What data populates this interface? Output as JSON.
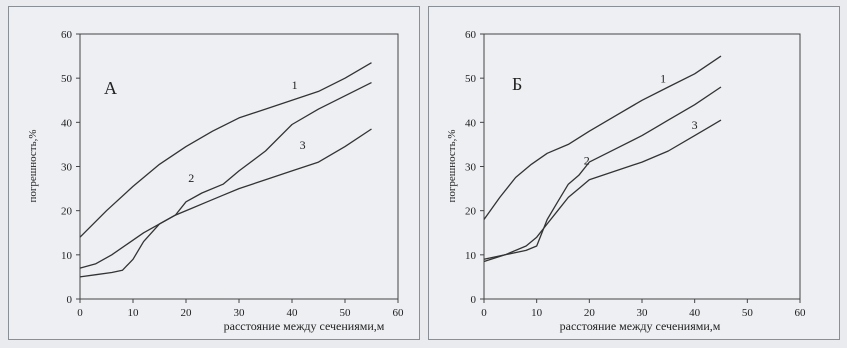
{
  "chart_data": [
    {
      "type": "line",
      "panel_label": "А",
      "xlabel": "расстояние между сечениями,м",
      "ylabel": "погрешность,%",
      "xlim": [
        0,
        60
      ],
      "ylim": [
        0,
        60
      ],
      "xticks": [
        "0",
        "10",
        "20",
        "30",
        "40",
        "50",
        "60"
      ],
      "yticks": [
        "0",
        "10",
        "20",
        "30",
        "40",
        "50",
        "60"
      ],
      "series": [
        {
          "name": "1",
          "color": "#333333",
          "x": [
            0,
            5,
            10,
            15,
            20,
            25,
            30,
            35,
            40,
            45,
            50,
            55
          ],
          "y": [
            14,
            20,
            25.5,
            30.5,
            34.5,
            38,
            41,
            43,
            45,
            47,
            50,
            53.5
          ]
        },
        {
          "name": "2",
          "color": "#333333",
          "x": [
            0,
            3,
            6,
            8,
            10,
            12,
            15,
            18,
            20,
            23,
            27,
            30,
            35,
            40,
            45,
            50,
            55
          ],
          "y": [
            5,
            5.5,
            6,
            6.5,
            9,
            13,
            17,
            19,
            22,
            24,
            26,
            29,
            33.5,
            39.5,
            43,
            46,
            49
          ]
        },
        {
          "name": "3",
          "color": "#333333",
          "x": [
            0,
            3,
            6,
            9,
            12,
            15,
            18,
            21,
            24,
            27,
            30,
            35,
            40,
            45,
            50,
            55
          ],
          "y": [
            7,
            8,
            10,
            12.5,
            15,
            17,
            19,
            20.5,
            22,
            23.5,
            25,
            27,
            29,
            31,
            34.5,
            38.5
          ]
        }
      ],
      "curve_labels": [
        {
          "text": "1",
          "x": 40.5,
          "y": 47.5
        },
        {
          "text": "2",
          "x": 21,
          "y": 26.5
        },
        {
          "text": "3",
          "x": 42,
          "y": 34
        }
      ]
    },
    {
      "type": "line",
      "panel_label": "Б",
      "xlabel": "расстояние между  сечениями,м",
      "ylabel": "погрешность,%",
      "xlim": [
        0,
        60
      ],
      "ylim": [
        0,
        60
      ],
      "xticks": [
        "0",
        "10",
        "20",
        "30",
        "40",
        "50",
        "60"
      ],
      "yticks": [
        "0",
        "10",
        "20",
        "30",
        "40",
        "50",
        "60"
      ],
      "series": [
        {
          "name": "1",
          "color": "#333333",
          "x": [
            0,
            3,
            6,
            9,
            12,
            16,
            20,
            25,
            30,
            35,
            40,
            45
          ],
          "y": [
            18,
            23,
            27.5,
            30.5,
            33,
            35,
            38,
            41.5,
            45,
            48,
            51,
            55
          ]
        },
        {
          "name": "2",
          "color": "#333333",
          "x": [
            0,
            4,
            8,
            10,
            12,
            14,
            16,
            18,
            20,
            25,
            30,
            35,
            40,
            45
          ],
          "y": [
            8.5,
            10,
            11,
            12,
            18,
            22,
            26,
            28,
            31,
            34,
            37,
            40.5,
            44,
            48
          ]
        },
        {
          "name": "3",
          "color": "#333333",
          "x": [
            0,
            4,
            8,
            10,
            12,
            14,
            16,
            18,
            20,
            25,
            30,
            35,
            40,
            45
          ],
          "y": [
            9,
            10,
            12,
            14,
            17,
            20,
            23,
            25,
            27,
            29,
            31,
            33.5,
            37,
            40.5
          ]
        }
      ],
      "curve_labels": [
        {
          "text": "1",
          "x": 34,
          "y": 49
        },
        {
          "text": "2",
          "x": 19.5,
          "y": 30.5
        },
        {
          "text": "3",
          "x": 40,
          "y": 38.5
        }
      ]
    }
  ]
}
